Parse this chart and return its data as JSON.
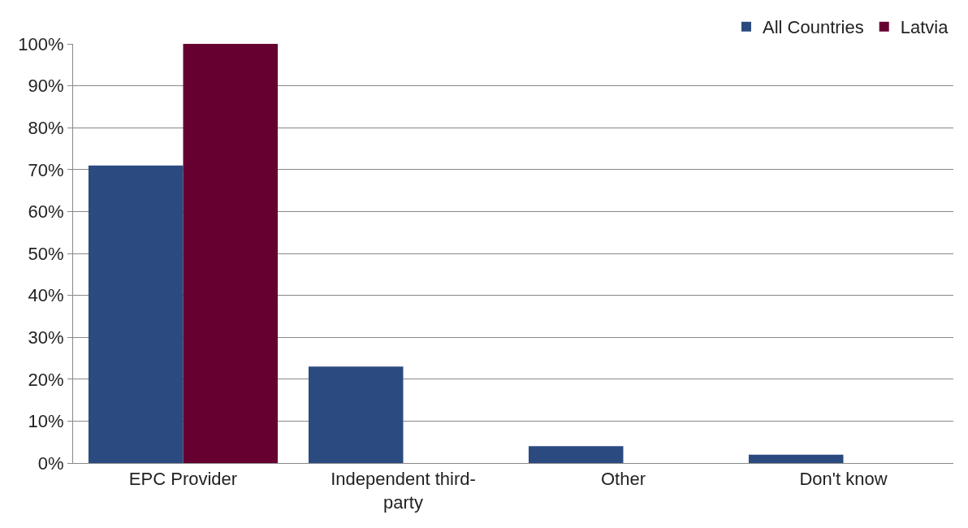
{
  "chart_data": {
    "type": "bar",
    "categories": [
      "EPC Provider",
      "Independent third-party",
      "Other",
      "Don't know"
    ],
    "series": [
      {
        "name": "All Countries",
        "color": "#2b4a80",
        "values": [
          71,
          23,
          4,
          2
        ]
      },
      {
        "name": "Latvia",
        "color": "#660030",
        "values": [
          100,
          0,
          0,
          0
        ]
      }
    ],
    "ylim": [
      0,
      100
    ],
    "yticks": [
      {
        "value": 0,
        "label": "0%"
      },
      {
        "value": 10,
        "label": "10%"
      },
      {
        "value": 20,
        "label": "20%"
      },
      {
        "value": 30,
        "label": "30%"
      },
      {
        "value": 40,
        "label": "40%"
      },
      {
        "value": 50,
        "label": "50%"
      },
      {
        "value": 60,
        "label": "60%"
      },
      {
        "value": 70,
        "label": "70%"
      },
      {
        "value": 80,
        "label": "80%"
      },
      {
        "value": 90,
        "label": "90%"
      },
      {
        "value": 100,
        "label": "100%"
      }
    ],
    "grid": "y",
    "legend": "top right"
  }
}
